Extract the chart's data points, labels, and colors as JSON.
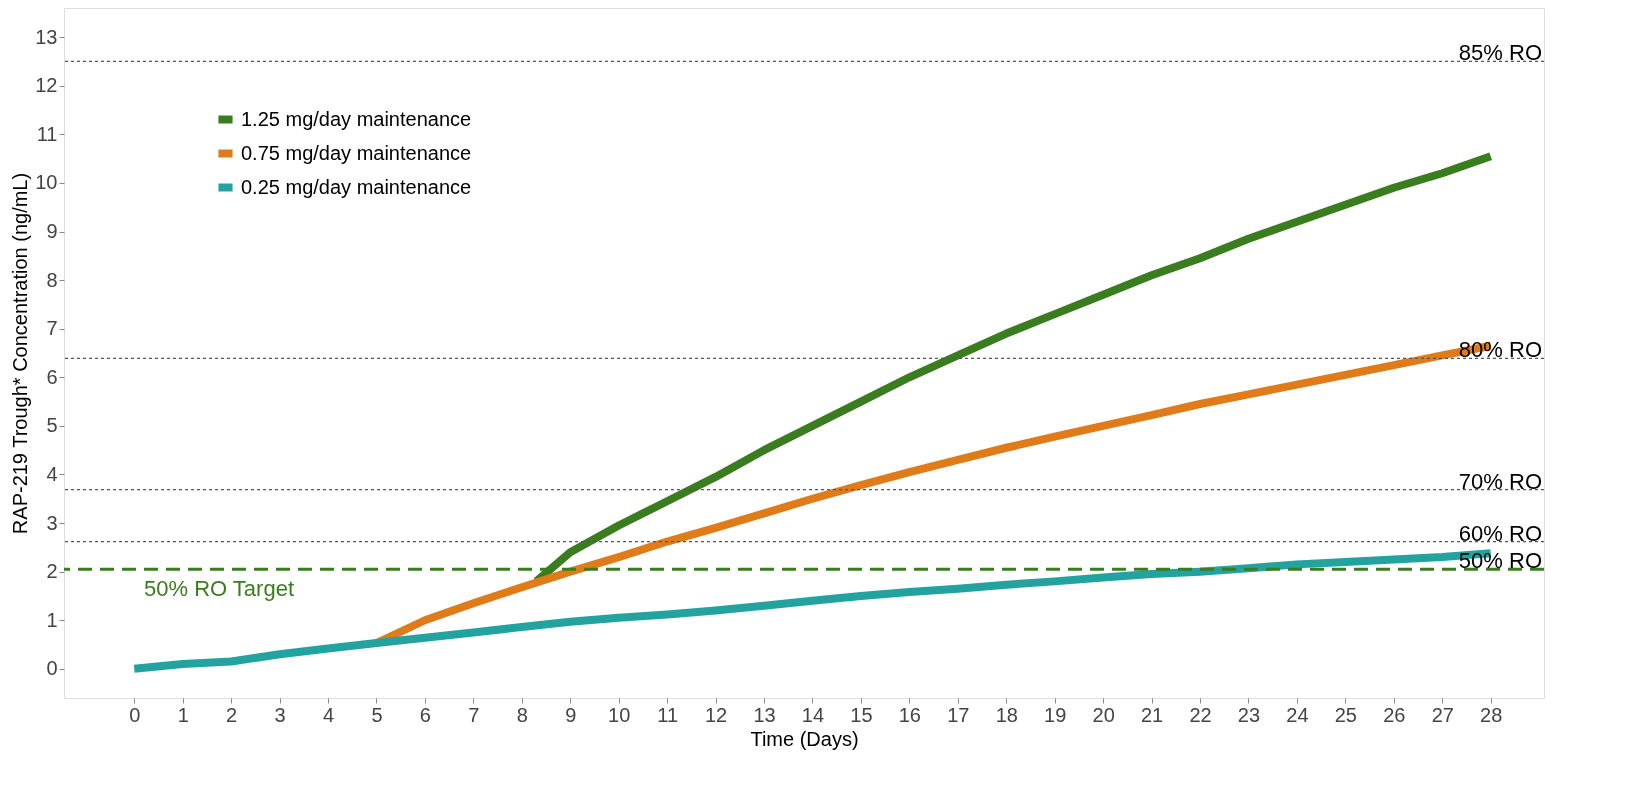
{
  "chart_data": {
    "type": "line",
    "xlabel": "Time (Days)",
    "ylabel": "RAP-219 Trough* Concentration (ng/mL)",
    "xlim": [
      -1.45,
      29.1
    ],
    "xticks": [
      0,
      1,
      2,
      3,
      4,
      5,
      6,
      7,
      8,
      9,
      10,
      11,
      12,
      13,
      14,
      15,
      16,
      17,
      18,
      19,
      20,
      21,
      22,
      23,
      24,
      25,
      26,
      27,
      28
    ],
    "ylim": [
      -0.6,
      13.6
    ],
    "yticks": [
      0,
      1,
      2,
      3,
      4,
      5,
      6,
      7,
      8,
      9,
      10,
      11,
      12,
      13
    ],
    "grid": false,
    "legend": "top left",
    "marker": "none",
    "line_style": "solid",
    "series": [
      {
        "name": "1.25 mg/day maintenance",
        "color": "#3a7d1e",
        "x": [
          8.3,
          9,
          10,
          11,
          12,
          13,
          14,
          15,
          16,
          17,
          18,
          19,
          20,
          21,
          22,
          23,
          24,
          25,
          26,
          27,
          28
        ],
        "values": [
          1.8,
          2.4,
          2.95,
          3.45,
          3.95,
          4.5,
          5.0,
          5.5,
          6.0,
          6.45,
          6.9,
          7.3,
          7.7,
          8.1,
          8.45,
          8.85,
          9.2,
          9.55,
          9.9,
          10.2,
          10.55
        ]
      },
      {
        "name": "0.75 mg/day maintenance",
        "color": "#e07b1a",
        "x": [
          5,
          6,
          7,
          8,
          9,
          10,
          11,
          12,
          13,
          14,
          15,
          16,
          17,
          18,
          19,
          20,
          21,
          22,
          23,
          24,
          25,
          26,
          27,
          28
        ],
        "values": [
          0.53,
          1.0,
          1.35,
          1.68,
          2.0,
          2.3,
          2.62,
          2.9,
          3.2,
          3.5,
          3.78,
          4.05,
          4.3,
          4.55,
          4.78,
          5.0,
          5.22,
          5.45,
          5.65,
          5.85,
          6.05,
          6.25,
          6.45,
          6.65
        ]
      },
      {
        "name": "0.25 mg/day maintenance",
        "color": "#22a39f",
        "x": [
          0,
          1,
          2,
          3,
          4,
          5,
          6,
          7,
          8,
          9,
          10,
          11,
          12,
          13,
          14,
          15,
          16,
          17,
          18,
          19,
          20,
          21,
          22,
          23,
          24,
          25,
          26,
          27,
          28
        ],
        "values": [
          0,
          0.1,
          0.15,
          0.3,
          0.42,
          0.53,
          0.64,
          0.75,
          0.86,
          0.97,
          1.05,
          1.12,
          1.2,
          1.3,
          1.4,
          1.5,
          1.58,
          1.65,
          1.73,
          1.8,
          1.88,
          1.95,
          2.0,
          2.07,
          2.15,
          2.2,
          2.25,
          2.3,
          2.38
        ]
      }
    ],
    "ref_lines": [
      {
        "axis": "y",
        "value": 12.5,
        "label": "85% RO",
        "color": "#555555",
        "line_style": "dotted"
      },
      {
        "axis": "y",
        "value": 6.39,
        "label": "80% RO",
        "color": "#555555",
        "line_style": "dotted"
      },
      {
        "axis": "y",
        "value": 3.69,
        "label": "70% RO",
        "color": "#555555",
        "line_style": "dotted"
      },
      {
        "axis": "y",
        "value": 2.62,
        "label": "60% RO",
        "color": "#555555",
        "line_style": "dotted"
      },
      {
        "axis": "y",
        "value": 2.05,
        "label": "50% RO",
        "color": "#3a7d1e",
        "line_style": "dashed"
      }
    ],
    "annotations": [
      "50% RO Target"
    ]
  }
}
